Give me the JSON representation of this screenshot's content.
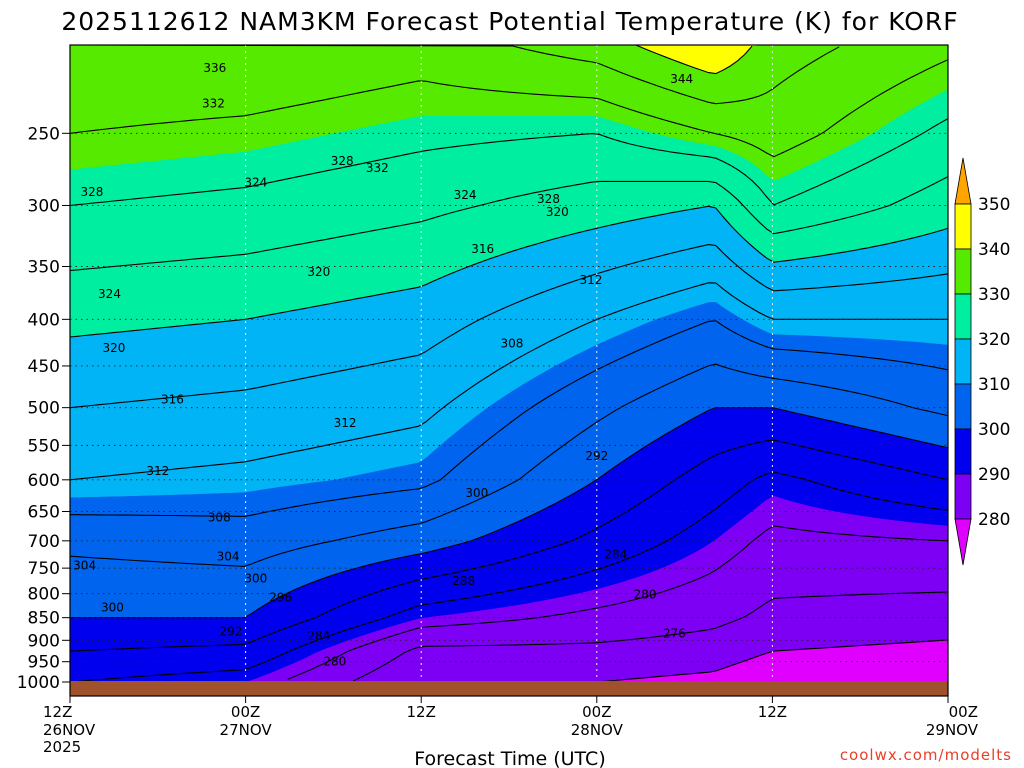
{
  "title": "2025112612 NAM3KM Forecast Potential Temperature (K) for KORF",
  "credit": "coolwx.com/modelts",
  "chart_data": {
    "type": "heatmap",
    "title": "2025112612 NAM3KM Forecast Potential Temperature (K) for KORF",
    "xlabel": "Forecast Time (UTC)",
    "ylabel": "",
    "y_scale": "log-pressure (reversed)",
    "ylim_hpa": [
      1000,
      200
    ],
    "y_ticks": [
      "250",
      "300",
      "350",
      "400",
      "450",
      "500",
      "550",
      "600",
      "650",
      "700",
      "750",
      "800",
      "850",
      "900",
      "950",
      "1000"
    ],
    "x_ticks": [
      {
        "top": "12Z",
        "mid": "26NOV",
        "bottom": "2025"
      },
      {
        "top": "00Z",
        "mid": "27NOV",
        "bottom": ""
      },
      {
        "top": "12Z",
        "mid": "",
        "bottom": ""
      },
      {
        "top": "00Z",
        "mid": "28NOV",
        "bottom": ""
      },
      {
        "top": "12Z",
        "mid": "",
        "bottom": ""
      },
      {
        "top": "00Z",
        "mid": "29NOV",
        "bottom": ""
      }
    ],
    "grid": "dotted",
    "colorbar": {
      "boundaries": [
        "280",
        "290",
        "300",
        "310",
        "320",
        "330",
        "340",
        "350"
      ],
      "colors": [
        "#e000ff",
        "#7d00f5",
        "#0000ee",
        "#0064ee",
        "#00b4f5",
        "#00eea0",
        "#55ea00",
        "#ffff00",
        "#ffa500"
      ]
    },
    "contour_interval_K": 4,
    "series": [
      {
        "time_h": 0,
        "levels_hpa": [
          1000,
          925,
          850,
          700,
          600,
          500,
          400,
          300,
          250,
          200
        ],
        "theta_K": [
          292,
          296,
          300,
          305,
          312,
          316,
          321,
          328,
          332,
          336
        ]
      },
      {
        "time_h": 12,
        "levels_hpa": [
          1000,
          925,
          850,
          700,
          600,
          500,
          400,
          300,
          250,
          200
        ],
        "theta_K": [
          290,
          295,
          300,
          306,
          311,
          315,
          320,
          327,
          331,
          336
        ]
      },
      {
        "time_h": 24,
        "levels_hpa": [
          1000,
          925,
          850,
          700,
          600,
          500,
          400,
          300,
          250,
          200
        ],
        "theta_K": [
          280,
          283,
          290,
          302,
          309,
          313,
          318,
          325,
          329,
          334
        ]
      },
      {
        "time_h": 36,
        "levels_hpa": [
          1000,
          925,
          850,
          700,
          600,
          500,
          400,
          300,
          250,
          200
        ],
        "theta_K": [
          280,
          283,
          287,
          295,
          300,
          305,
          312,
          322,
          328,
          338
        ]
      },
      {
        "time_h": 44,
        "levels_hpa": [
          1000,
          925,
          850,
          700,
          600,
          500,
          400,
          300,
          250,
          200
        ],
        "theta_K": [
          279,
          282,
          285,
          290,
          294,
          300,
          308,
          320,
          332,
          344
        ]
      },
      {
        "time_h": 48,
        "levels_hpa": [
          1000,
          925,
          850,
          700,
          600,
          500,
          400,
          300,
          250,
          200
        ],
        "theta_K": [
          277,
          280,
          283,
          287,
          291,
          300,
          312,
          328,
          334,
          338
        ]
      },
      {
        "time_h": 60,
        "levels_hpa": [
          1000,
          925,
          850,
          700,
          600,
          500,
          400,
          300,
          250,
          200
        ],
        "theta_K": [
          276,
          279,
          282,
          288,
          296,
          305,
          312,
          322,
          327,
          333
        ]
      }
    ],
    "contour_labels": [
      {
        "text": "336",
        "t": 9.9,
        "p": 212
      },
      {
        "text": "332",
        "t": 9.8,
        "p": 232
      },
      {
        "text": "344",
        "t": 41.8,
        "p": 218
      },
      {
        "text": "328",
        "t": 1.5,
        "p": 290
      },
      {
        "text": "324",
        "t": 12.7,
        "p": 283
      },
      {
        "text": "328",
        "t": 18.6,
        "p": 268
      },
      {
        "text": "332",
        "t": 21.0,
        "p": 273
      },
      {
        "text": "324",
        "t": 27.0,
        "p": 292
      },
      {
        "text": "320",
        "t": 33.3,
        "p": 305
      },
      {
        "text": "328",
        "t": 32.7,
        "p": 295
      },
      {
        "text": "320",
        "t": 17.0,
        "p": 355
      },
      {
        "text": "316",
        "t": 28.2,
        "p": 335
      },
      {
        "text": "312",
        "t": 35.6,
        "p": 362
      },
      {
        "text": "324",
        "t": 2.7,
        "p": 375
      },
      {
        "text": "320",
        "t": 3.0,
        "p": 430
      },
      {
        "text": "316",
        "t": 7.0,
        "p": 490
      },
      {
        "text": "312",
        "t": 18.8,
        "p": 520
      },
      {
        "text": "308",
        "t": 30.2,
        "p": 425
      },
      {
        "text": "312",
        "t": 6.0,
        "p": 587
      },
      {
        "text": "308",
        "t": 10.2,
        "p": 660
      },
      {
        "text": "300",
        "t": 27.8,
        "p": 620
      },
      {
        "text": "292",
        "t": 36.0,
        "p": 565
      },
      {
        "text": "304",
        "t": 1.0,
        "p": 745
      },
      {
        "text": "304",
        "t": 10.8,
        "p": 728
      },
      {
        "text": "300",
        "t": 12.7,
        "p": 770
      },
      {
        "text": "300",
        "t": 2.9,
        "p": 828
      },
      {
        "text": "296",
        "t": 14.4,
        "p": 808
      },
      {
        "text": "292",
        "t": 11.0,
        "p": 880
      },
      {
        "text": "288",
        "t": 26.9,
        "p": 775
      },
      {
        "text": "284",
        "t": 17.0,
        "p": 890
      },
      {
        "text": "280",
        "t": 18.1,
        "p": 950
      },
      {
        "text": "284",
        "t": 37.3,
        "p": 725
      },
      {
        "text": "280",
        "t": 39.3,
        "p": 802
      },
      {
        "text": "276",
        "t": 41.3,
        "p": 885
      }
    ]
  }
}
